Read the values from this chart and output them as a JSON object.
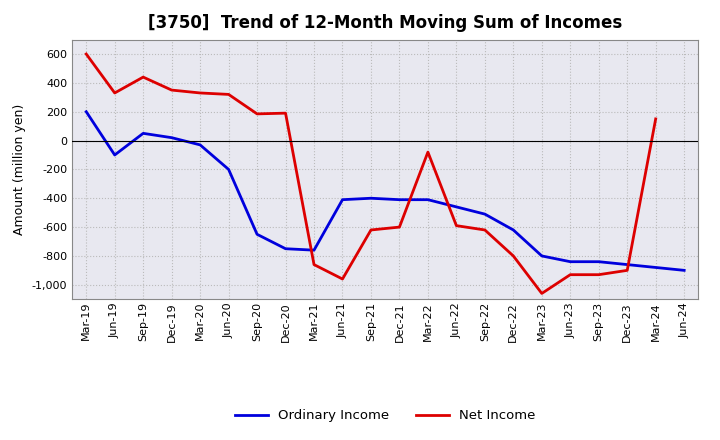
{
  "title": "[3750]  Trend of 12-Month Moving Sum of Incomes",
  "ylabel": "Amount (million yen)",
  "x_labels": [
    "Mar-19",
    "Jun-19",
    "Sep-19",
    "Dec-19",
    "Mar-20",
    "Jun-20",
    "Sep-20",
    "Dec-20",
    "Mar-21",
    "Jun-21",
    "Sep-21",
    "Dec-21",
    "Mar-22",
    "Jun-22",
    "Sep-22",
    "Dec-22",
    "Mar-23",
    "Jun-23",
    "Sep-23",
    "Dec-23",
    "Mar-24",
    "Jun-24"
  ],
  "ordinary_income": [
    200,
    -100,
    50,
    20,
    -30,
    -200,
    -650,
    -750,
    -760,
    -410,
    -400,
    -410,
    -410,
    -460,
    -510,
    -620,
    -800,
    -840,
    -840,
    -860,
    -880,
    -900
  ],
  "net_income": [
    600,
    330,
    440,
    350,
    330,
    320,
    185,
    190,
    -860,
    -960,
    -620,
    -600,
    -80,
    -590,
    -620,
    -800,
    -1060,
    -930,
    -930,
    -900,
    150,
    null
  ],
  "ordinary_income_color": "#0000dd",
  "net_income_color": "#dd0000",
  "ylim": [
    -1100,
    700
  ],
  "yticks": [
    -1000,
    -800,
    -600,
    -400,
    -200,
    0,
    200,
    400,
    600
  ],
  "background_color": "#ffffff",
  "plot_bg_color": "#e8e8f0",
  "grid_color": "#bbbbbb",
  "legend_ordinary": "Ordinary Income",
  "legend_net": "Net Income",
  "line_width": 2.0,
  "title_fontsize": 12,
  "axis_fontsize": 8,
  "ylabel_fontsize": 9
}
